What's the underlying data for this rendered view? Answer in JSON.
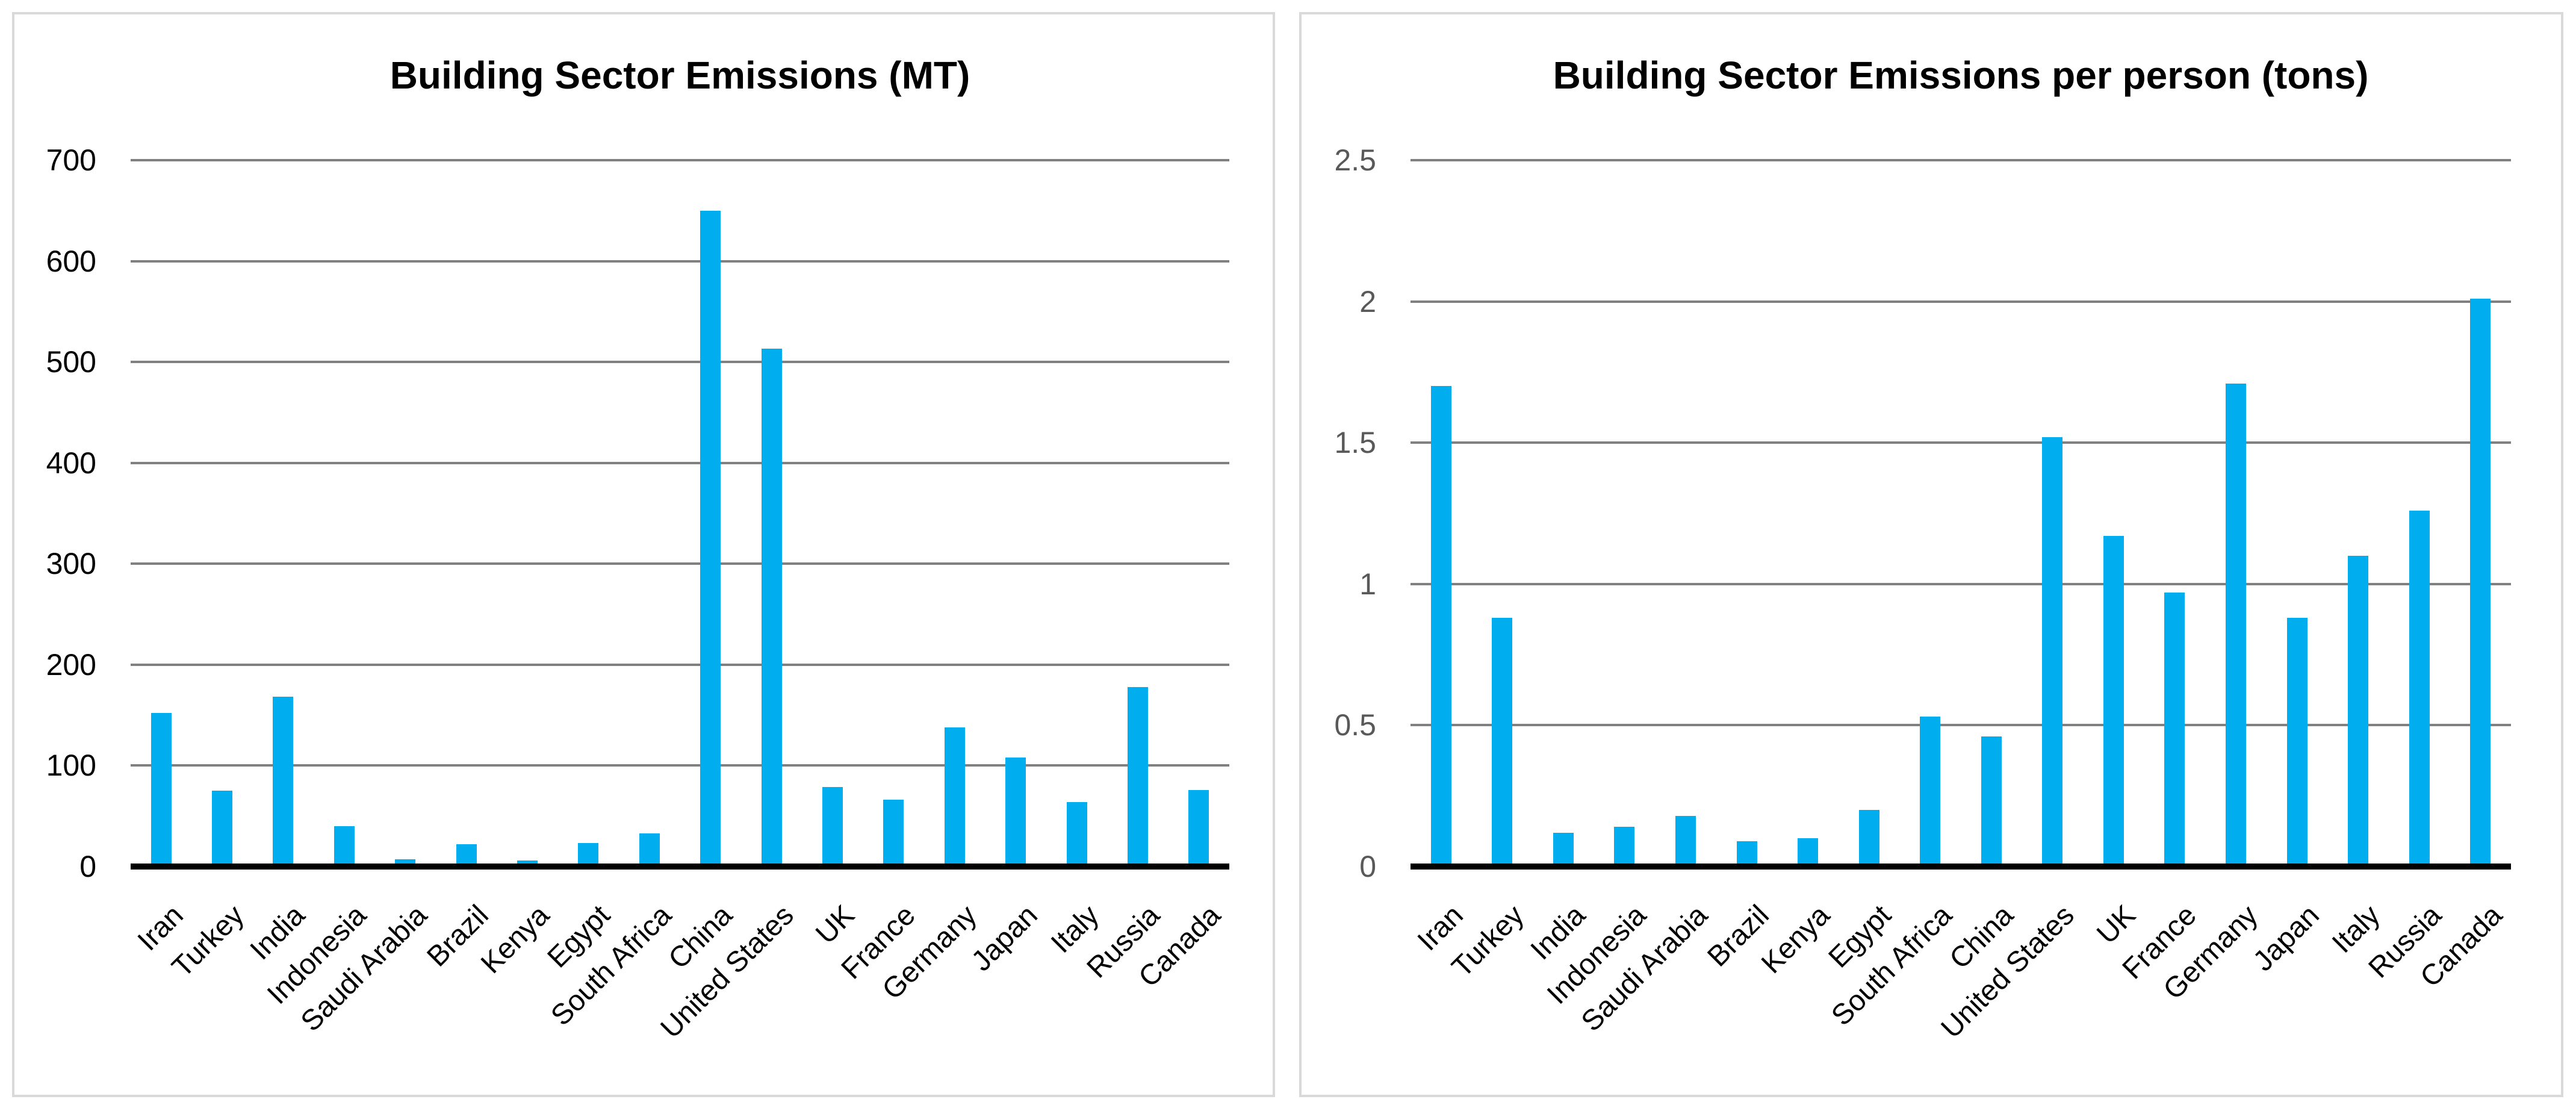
{
  "page": {
    "background_color": "#ffffff",
    "panel_border_color": "#d9d9d9"
  },
  "colors": {
    "bar_fill": "#00aef0",
    "gridline": "#808080",
    "axis_line": "#000000",
    "title_text": "#000000",
    "category_label_text": "#000000"
  },
  "chart_data": [
    {
      "type": "bar",
      "title": "Building Sector Emissions (MT)",
      "xlabel": "",
      "ylabel": "",
      "ylim": [
        0,
        700
      ],
      "grid": true,
      "legend": false,
      "bar_color": "#00aef0",
      "tick_label_color": "#000000",
      "y_ticks": [
        0,
        100,
        200,
        300,
        400,
        500,
        600,
        700
      ],
      "y_tick_labels": [
        "0",
        "100",
        "200",
        "300",
        "400",
        "500",
        "600",
        "700"
      ],
      "categories": [
        "Iran",
        "Turkey",
        "India",
        "Indonesia",
        "Saudi Arabia",
        "Brazil",
        "Kenya",
        "Egypt",
        "South Africa",
        "China",
        "United States",
        "UK",
        "France",
        "Germany",
        "Japan",
        "Italy",
        "Russia",
        "Canada"
      ],
      "values": [
        152,
        75,
        168,
        40,
        7,
        22,
        6,
        23,
        33,
        650,
        513,
        79,
        66,
        138,
        108,
        64,
        178,
        76
      ]
    },
    {
      "type": "bar",
      "title": "Building Sector Emissions per person (tons)",
      "xlabel": "",
      "ylabel": "",
      "ylim": [
        0,
        2.5
      ],
      "grid": true,
      "legend": false,
      "bar_color": "#00aef0",
      "tick_label_color": "#595959",
      "y_ticks": [
        0,
        0.5,
        1,
        1.5,
        2,
        2.5
      ],
      "y_tick_labels": [
        "0",
        "0.5",
        "1",
        "1.5",
        "2",
        "2.5"
      ],
      "categories": [
        "Iran",
        "Turkey",
        "India",
        "Indonesia",
        "Saudi Arabia",
        "Brazil",
        "Kenya",
        "Egypt",
        "South Africa",
        "China",
        "United States",
        "UK",
        "France",
        "Germany",
        "Japan",
        "Italy",
        "Russia",
        "Canada"
      ],
      "values": [
        1.7,
        0.88,
        0.12,
        0.14,
        0.18,
        0.09,
        0.1,
        0.2,
        0.53,
        0.46,
        1.52,
        1.17,
        0.97,
        1.71,
        0.88,
        1.1,
        1.26,
        2.01
      ]
    }
  ]
}
